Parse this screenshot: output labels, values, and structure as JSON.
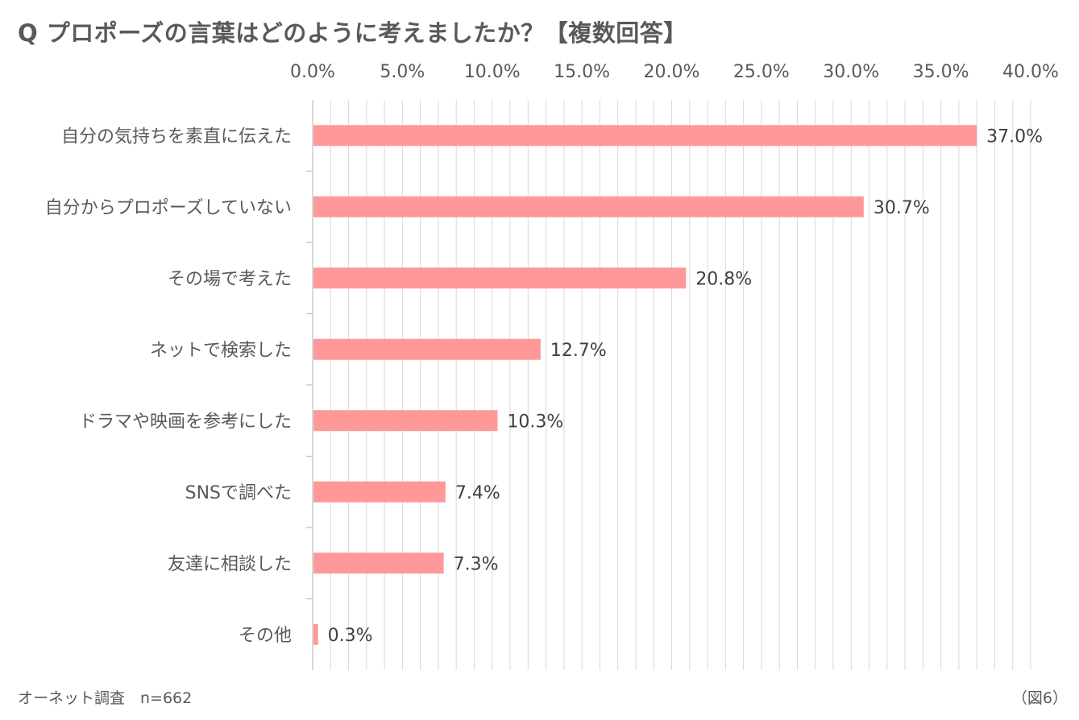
{
  "title": "Q プロポーズの言葉はどのように考えましたか？【複数回答】",
  "source_note": "オーネット調査　n=662",
  "figure_label": "（図6）",
  "colors": {
    "bar": "#ff9999",
    "grid": "#d9d9d9",
    "axis": "#bfbfbf"
  },
  "chart_data": {
    "type": "bar",
    "orientation": "horizontal",
    "title": "Q プロポーズの言葉はどのように考えましたか？【複数回答】",
    "xlabel": "",
    "ylabel": "",
    "xlim": [
      0,
      40
    ],
    "x_ticks": [
      0,
      5,
      10,
      15,
      20,
      25,
      30,
      35,
      40
    ],
    "x_tick_labels": [
      "0.0%",
      "5.0%",
      "10.0%",
      "15.0%",
      "20.0%",
      "25.0%",
      "30.0%",
      "35.0%",
      "40.0%"
    ],
    "x_axis_position": "top",
    "minor_grid_step": 1,
    "categories": [
      "自分の気持ちを素直に伝えた",
      "自分からプロポーズしていない",
      "その場で考えた",
      "ネットで検索した",
      "ドラマや映画を参考にした",
      "SNSで調べた",
      "友達に相談した",
      "その他"
    ],
    "values": [
      37.0,
      30.7,
      20.8,
      12.7,
      10.3,
      7.4,
      7.3,
      0.3
    ],
    "value_labels": [
      "37.0%",
      "30.7%",
      "20.8%",
      "12.7%",
      "10.3%",
      "7.4%",
      "7.3%",
      "0.3%"
    ]
  }
}
